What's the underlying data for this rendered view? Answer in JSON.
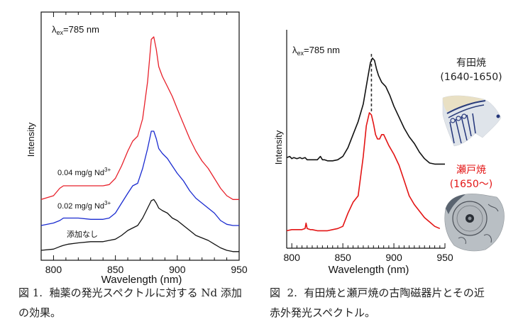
{
  "chart_data": [
    {
      "id": "fig1",
      "type": "line",
      "title": "",
      "annotation": "λex=785 nm",
      "annotation_main": "λ",
      "annotation_sub": "ex",
      "annotation_rest": "=785 nm",
      "xlabel": "Wavelength (nm)",
      "ylabel": "Intensity",
      "xlim": [
        790,
        950
      ],
      "ylim": [
        0,
        1
      ],
      "x_ticks": [
        800,
        850,
        900,
        950
      ],
      "x_tick_labels": [
        "800",
        "850",
        "900",
        "950"
      ],
      "minor_tick_step": 10,
      "grid": false,
      "y_tick_labels": false,
      "series": [
        {
          "name": "0.04 mg/g Nd3+",
          "label_main": "0.04 mg/g Nd",
          "label_sup": "3+",
          "color": "#e8202a",
          "x": [
            790,
            800,
            805,
            808,
            812,
            820,
            830,
            840,
            845,
            850,
            855,
            860,
            864,
            868,
            872,
            876,
            879,
            881,
            883,
            885,
            888,
            892,
            896,
            900,
            905,
            910,
            915,
            920,
            925,
            930,
            935,
            940,
            945,
            950
          ],
          "y": [
            0.245,
            0.26,
            0.29,
            0.3,
            0.3,
            0.3,
            0.3,
            0.3,
            0.305,
            0.33,
            0.38,
            0.44,
            0.48,
            0.5,
            0.57,
            0.72,
            0.89,
            0.9,
            0.85,
            0.78,
            0.74,
            0.7,
            0.66,
            0.61,
            0.55,
            0.49,
            0.44,
            0.4,
            0.37,
            0.33,
            0.29,
            0.26,
            0.245,
            0.245
          ]
        },
        {
          "name": "0.02 mg/g Nd3+",
          "label_main": "0.02 mg/g Nd",
          "label_sup": "3+",
          "color": "#1a2bd0",
          "x": [
            790,
            800,
            805,
            808,
            812,
            820,
            830,
            840,
            845,
            850,
            855,
            860,
            864,
            868,
            872,
            876,
            879,
            881,
            883,
            885,
            888,
            892,
            896,
            900,
            905,
            910,
            915,
            920,
            925,
            930,
            935,
            940,
            945,
            950
          ],
          "y": [
            0.14,
            0.15,
            0.16,
            0.17,
            0.17,
            0.17,
            0.165,
            0.165,
            0.17,
            0.19,
            0.23,
            0.27,
            0.3,
            0.31,
            0.37,
            0.45,
            0.52,
            0.52,
            0.49,
            0.45,
            0.43,
            0.41,
            0.38,
            0.35,
            0.32,
            0.28,
            0.25,
            0.23,
            0.21,
            0.19,
            0.16,
            0.145,
            0.14,
            0.14
          ]
        },
        {
          "name": "添加なし",
          "label_main": "添加なし",
          "label_sup": "",
          "color": "#111111",
          "x": [
            790,
            800,
            805,
            808,
            812,
            820,
            830,
            840,
            845,
            850,
            855,
            860,
            864,
            868,
            872,
            876,
            879,
            881,
            883,
            885,
            888,
            892,
            896,
            900,
            905,
            910,
            915,
            920,
            925,
            930,
            935,
            940,
            945,
            950
          ],
          "y": [
            0.04,
            0.045,
            0.055,
            0.06,
            0.065,
            0.07,
            0.075,
            0.075,
            0.08,
            0.085,
            0.1,
            0.12,
            0.13,
            0.14,
            0.17,
            0.21,
            0.24,
            0.245,
            0.23,
            0.21,
            0.2,
            0.19,
            0.17,
            0.16,
            0.14,
            0.12,
            0.1,
            0.09,
            0.08,
            0.065,
            0.05,
            0.04,
            0.035,
            0.035
          ]
        }
      ]
    },
    {
      "id": "fig2",
      "type": "line",
      "title": "",
      "annotation": "λex=785 nm",
      "annotation_main": "λ",
      "annotation_sub": "ex",
      "annotation_rest": "=785 nm",
      "xlabel": "Wavelength (nm)",
      "ylabel": "Intensity",
      "xlim": [
        795,
        950
      ],
      "ylim": [
        0,
        1
      ],
      "x_ticks": [
        800,
        850,
        900,
        950
      ],
      "x_tick_labels": [
        "800",
        "850",
        "900",
        "950"
      ],
      "minor_tick_step": 10,
      "grid": false,
      "y_tick_labels": false,
      "reference_line_x": 878,
      "series": [
        {
          "name": "有田焼 (1640-1650)",
          "color": "#111111",
          "x": [
            795,
            798,
            800,
            802,
            805,
            808,
            810,
            813,
            815,
            818,
            820,
            825,
            828,
            830,
            832,
            835,
            840,
            845,
            850,
            855,
            860,
            865,
            870,
            874,
            877,
            879,
            881,
            883,
            885,
            888,
            892,
            896,
            900,
            905,
            910,
            915,
            920,
            925,
            930,
            935,
            940,
            945,
            950
          ],
          "y": [
            0.415,
            0.42,
            0.41,
            0.415,
            0.41,
            0.415,
            0.41,
            0.415,
            0.405,
            0.405,
            0.405,
            0.405,
            0.42,
            0.405,
            0.405,
            0.4,
            0.4,
            0.405,
            0.42,
            0.46,
            0.52,
            0.58,
            0.66,
            0.77,
            0.85,
            0.87,
            0.86,
            0.82,
            0.79,
            0.76,
            0.74,
            0.7,
            0.65,
            0.6,
            0.55,
            0.51,
            0.48,
            0.44,
            0.41,
            0.39,
            0.385,
            0.385,
            0.385
          ]
        },
        {
          "name": "瀬戸焼 (1650〜)",
          "color": "#e31414",
          "x": [
            795,
            800,
            805,
            810,
            813,
            814,
            815,
            818,
            820,
            825,
            830,
            835,
            840,
            845,
            850,
            855,
            860,
            865,
            870,
            873,
            876,
            878,
            880,
            882,
            884,
            886,
            888,
            890,
            892,
            895,
            900,
            905,
            910,
            915,
            920,
            925,
            930,
            935,
            940,
            945
          ],
          "y": [
            0.08,
            0.085,
            0.085,
            0.085,
            0.09,
            0.115,
            0.09,
            0.085,
            0.085,
            0.08,
            0.08,
            0.08,
            0.085,
            0.09,
            0.1,
            0.16,
            0.21,
            0.24,
            0.42,
            0.56,
            0.62,
            0.61,
            0.57,
            0.52,
            0.5,
            0.5,
            0.52,
            0.52,
            0.5,
            0.47,
            0.43,
            0.38,
            0.31,
            0.24,
            0.2,
            0.17,
            0.14,
            0.12,
            0.1,
            0.09
          ]
        }
      ],
      "side_labels": [
        {
          "line1": "有田焼",
          "line2": "(1640-1650)",
          "color": "#222222"
        },
        {
          "line1": "瀬戸焼",
          "line2": "(1650〜)",
          "color": "#e31414"
        }
      ]
    }
  ],
  "photos": [
    {
      "name": "arita-ware-shard",
      "description": "blue-and-white porcelain shard"
    },
    {
      "name": "seto-ware-shard",
      "description": "blue-and-white porcelain shard with circular medallion"
    }
  ],
  "captions": [
    {
      "text": "図 1.  釉薬の発光スペクトルに対する Nd 添加\nの効果。"
    },
    {
      "text": "図  2.  有田焼と瀬戸焼の古陶磁器片とその近\n赤外発光スペクトル。"
    }
  ]
}
